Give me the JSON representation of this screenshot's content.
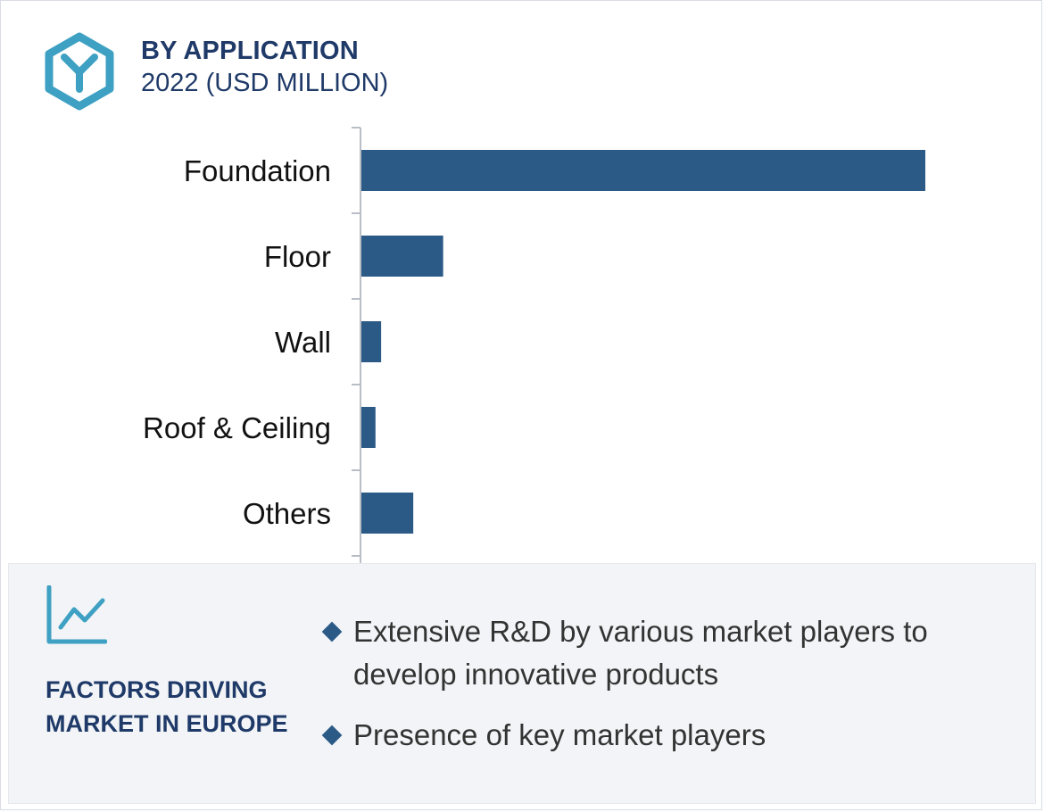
{
  "header": {
    "title": "BY APPLICATION",
    "subtitle": "2022 (USD MILLION)",
    "icon": "hexagon-y-icon",
    "icon_color": "#3ea0c2"
  },
  "chart_data": {
    "type": "bar",
    "orientation": "horizontal",
    "title": "BY APPLICATION",
    "subtitle": "2022 (USD MILLION)",
    "categories": [
      "Foundation",
      "Floor",
      "Wall",
      "Roof & Ceiling",
      "Others"
    ],
    "values": [
      100,
      14.5,
      3.5,
      2.5,
      9.2
    ],
    "value_axis_shown": false,
    "grid": false,
    "bar_color": "#2c5a87",
    "axis_color": "#b9bec6"
  },
  "factors": {
    "icon": "trend-line-icon",
    "icon_color": "#3ea0c2",
    "title_line1": "FACTORS DRIVING",
    "title_line2": "MARKET IN EUROPE",
    "bullet_color": "#2c5a87",
    "items": [
      "Extensive R&D by various market players to develop innovative products",
      "Presence of key market players"
    ]
  }
}
